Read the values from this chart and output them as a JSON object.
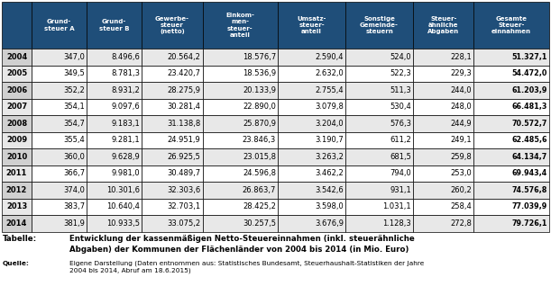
{
  "years": [
    "2004",
    "2005",
    "2006",
    "2007",
    "2008",
    "2009",
    "2010",
    "2011",
    "2012",
    "2013",
    "2014"
  ],
  "headers": [
    "Grund-\nsteuer A",
    "Grund-\nsteuer B",
    "Gewerbe-\nsteuer\n(netto)",
    "Einkom-\nmen-\nsteuer-\nanteil",
    "Umsatz-\nsteuer-\nanteil",
    "Sonstige\nGemeinde-\nsteuern",
    "Steuer-\nähnliche\nAbgaben",
    "Gesamte\nSteuer-\neinnahmen"
  ],
  "data_str_vals": [
    [
      "347,0",
      "8.496,6",
      "20.564,2",
      "18.576,7",
      "2.590,4",
      "524,0",
      "228,1",
      "51.327,1"
    ],
    [
      "349,5",
      "8.781,3",
      "23.420,7",
      "18.536,9",
      "2.632,0",
      "522,3",
      "229,3",
      "54.472,0"
    ],
    [
      "352,2",
      "8.931,2",
      "28.275,9",
      "20.133,9",
      "2.755,4",
      "511,3",
      "244,0",
      "61.203,9"
    ],
    [
      "354,1",
      "9.097,6",
      "30.281,4",
      "22.890,0",
      "3.079,8",
      "530,4",
      "248,0",
      "66.481,3"
    ],
    [
      "354,7",
      "9.183,1",
      "31.138,8",
      "25.870,9",
      "3.204,0",
      "576,3",
      "244,9",
      "70.572,7"
    ],
    [
      "355,4",
      "9.281,1",
      "24.951,9",
      "23.846,3",
      "3.190,7",
      "611,2",
      "249,1",
      "62.485,6"
    ],
    [
      "360,0",
      "9.628,9",
      "26.925,5",
      "23.015,8",
      "3.263,2",
      "681,5",
      "259,8",
      "64.134,7"
    ],
    [
      "366,7",
      "9.981,0",
      "30.489,7",
      "24.596,8",
      "3.462,2",
      "794,0",
      "253,0",
      "69.943,4"
    ],
    [
      "374,0",
      "10.301,6",
      "32.303,6",
      "26.863,7",
      "3.542,6",
      "931,1",
      "260,2",
      "74.576,8"
    ],
    [
      "383,7",
      "10.640,4",
      "32.703,1",
      "28.425,2",
      "3.598,0",
      "1.031,1",
      "258,4",
      "77.039,9"
    ],
    [
      "381,9",
      "10.933,5",
      "33.075,2",
      "30.257,5",
      "3.676,9",
      "1.128,3",
      "272,8",
      "79.726,1"
    ]
  ],
  "header_bg": "#1F4E79",
  "header_fg": "#FFFFFF",
  "row_bg_odd": "#E8E8E8",
  "row_bg_even": "#FFFFFF",
  "border_color": "#000000",
  "year_col_bg_odd": "#D0D0D0",
  "year_col_bg_even": "#E8E8E8",
  "title_label": "Tabelle:",
  "title_text": "Entwicklung der kassenmäßigen Netto-Steuereinnahmen (inkl. steuerähnliche\nAbgaben) der Kommunen der Flächenländer von 2004 bis 2014 (in Mio. Euro)",
  "source_label": "Quelle:",
  "source_text": "Eigene Darstellung (Daten entnommen aus: Statistisches Bundesamt, Steuerhaushalt-Statistiken der Jahre\n2004 bis 2014, Abruf am 18.6.2015)"
}
